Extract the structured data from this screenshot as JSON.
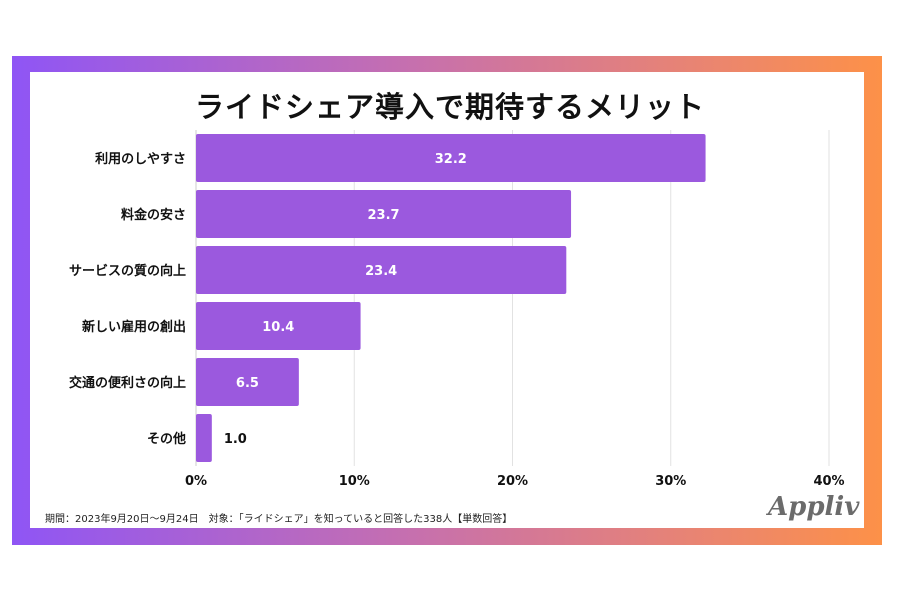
{
  "chart_data": {
    "type": "bar",
    "orientation": "horizontal",
    "title": "ライドシェア導入で期待するメリット",
    "categories": [
      "利用のしやすさ",
      "料金の安さ",
      "サービスの質の向上",
      "新しい雇用の創出",
      "交通の便利さの向上",
      "その他"
    ],
    "values": [
      32.2,
      23.7,
      23.4,
      10.4,
      6.5,
      1.0
    ],
    "value_labels": [
      "32.2",
      "23.7",
      "23.4",
      "10.4",
      "6.5",
      "1.0"
    ],
    "xlim": [
      0,
      40
    ],
    "xticks": [
      "0%",
      "10%",
      "20%",
      "30%",
      "40%"
    ],
    "grid": true,
    "bar_color": "#9b59de",
    "gridline_color": "#e2e2e2"
  },
  "footer": "期間：2023年9月20日〜9月24日　対象：「ライドシェア」を知っていると回答した338人【単数回答】",
  "logo": "Appliv",
  "frame_gradient": [
    "#8f55f5",
    "#fd9148"
  ]
}
